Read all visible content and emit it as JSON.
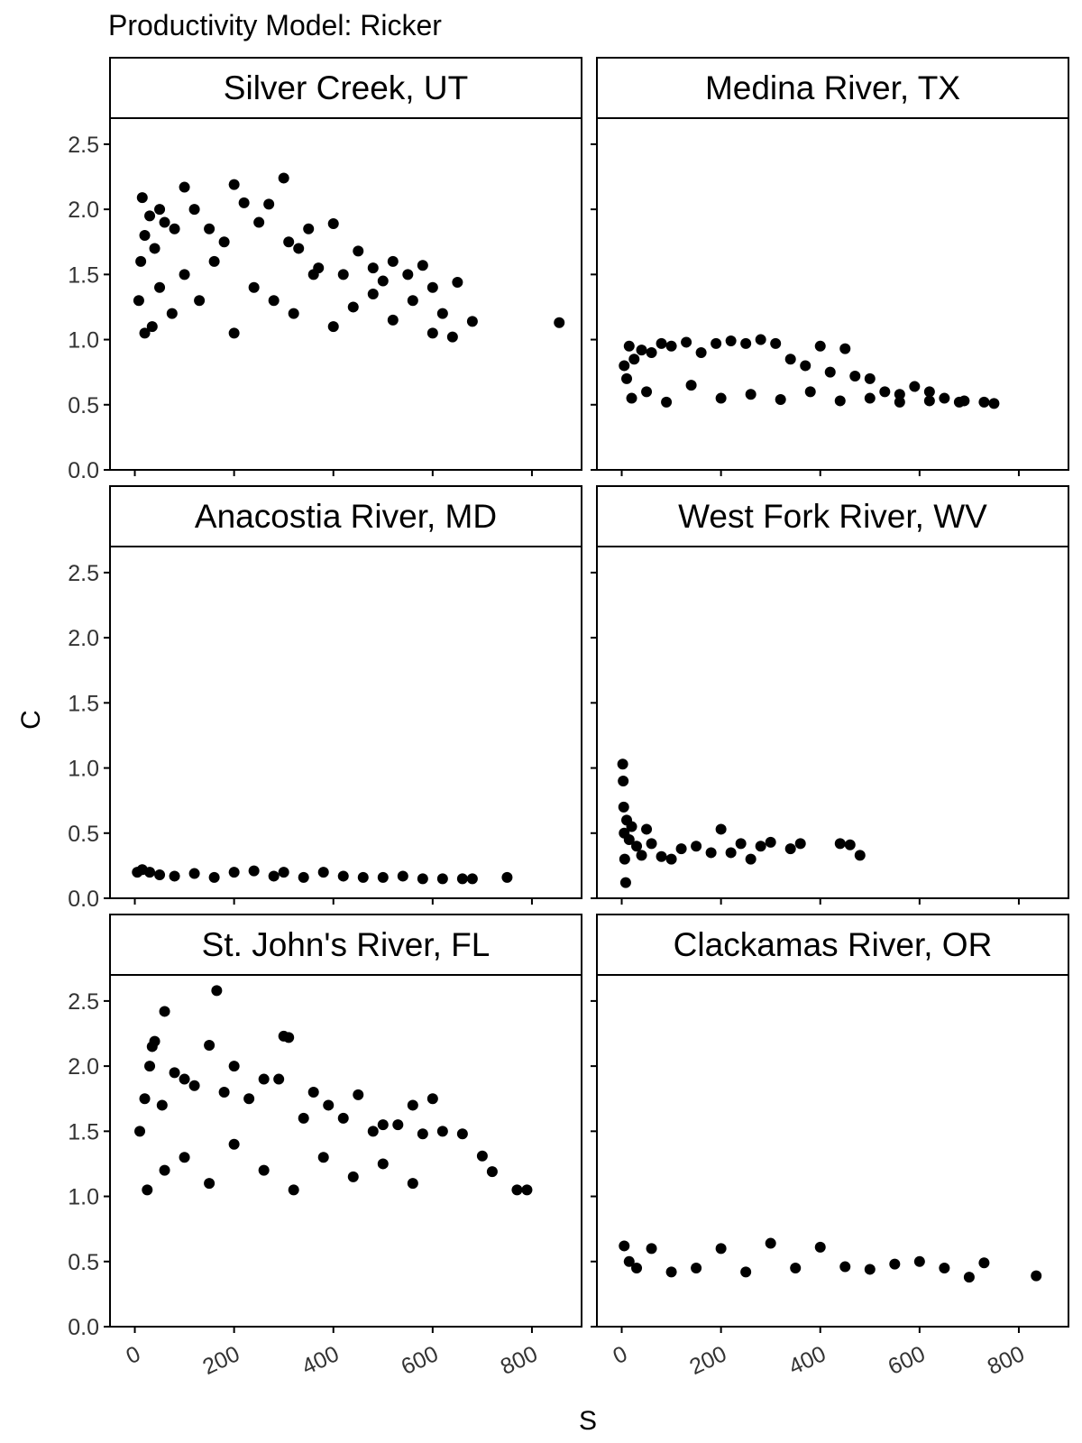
{
  "chart_data": {
    "type": "scatter",
    "title": "Productivity Model: Ricker",
    "xlabel": "S",
    "ylabel": "C",
    "xlim": [
      -50,
      900
    ],
    "ylim": [
      0,
      2.7
    ],
    "x_ticks": [
      0,
      200,
      400,
      600,
      800
    ],
    "x_tick_labels": [
      "0",
      "200",
      "400",
      "600",
      "800"
    ],
    "y_ticks": [
      0.0,
      0.5,
      1.0,
      1.5,
      2.0,
      2.5
    ],
    "y_tick_labels": [
      "0.0",
      "0.5",
      "1.0",
      "1.5",
      "2.0",
      "2.5"
    ],
    "facet_layout": "3 rows x 2 columns, shared axes",
    "point_color": "#000000",
    "panels": [
      {
        "strip": "Silver Creek, UT",
        "x": [
          8,
          12,
          15,
          20,
          30,
          40,
          50,
          60,
          80,
          100,
          120,
          150,
          180,
          200,
          220,
          250,
          270,
          300,
          310,
          330,
          350,
          370,
          400,
          420,
          450,
          480,
          500,
          520,
          550,
          580,
          600,
          620,
          650,
          680,
          855,
          20,
          35,
          50,
          75,
          100,
          130,
          160,
          200,
          240,
          280,
          320,
          360,
          400,
          440,
          480,
          520,
          560,
          600,
          640
        ],
        "y": [
          1.3,
          1.6,
          2.09,
          1.8,
          1.95,
          1.7,
          2.0,
          1.9,
          1.85,
          2.17,
          2.0,
          1.85,
          1.75,
          2.19,
          2.05,
          1.9,
          2.04,
          2.24,
          1.75,
          1.7,
          1.85,
          1.55,
          1.89,
          1.5,
          1.68,
          1.55,
          1.45,
          1.6,
          1.5,
          1.57,
          1.4,
          1.2,
          1.44,
          1.14,
          1.13,
          1.05,
          1.1,
          1.4,
          1.2,
          1.5,
          1.3,
          1.6,
          1.05,
          1.4,
          1.3,
          1.2,
          1.5,
          1.1,
          1.25,
          1.35,
          1.15,
          1.3,
          1.05,
          1.02
        ]
      },
      {
        "strip": "Medina River, TX",
        "x": [
          5,
          10,
          15,
          25,
          40,
          60,
          80,
          100,
          130,
          160,
          190,
          220,
          250,
          280,
          310,
          340,
          370,
          400,
          420,
          450,
          470,
          500,
          530,
          560,
          590,
          620,
          650,
          690,
          730,
          750,
          20,
          50,
          90,
          140,
          200,
          260,
          320,
          380,
          440,
          500,
          560,
          620,
          680
        ],
        "y": [
          0.8,
          0.7,
          0.95,
          0.85,
          0.92,
          0.9,
          0.97,
          0.95,
          0.98,
          0.9,
          0.97,
          0.99,
          0.97,
          1.0,
          0.97,
          0.85,
          0.8,
          0.95,
          0.75,
          0.93,
          0.72,
          0.7,
          0.6,
          0.58,
          0.64,
          0.6,
          0.55,
          0.53,
          0.52,
          0.51,
          0.55,
          0.6,
          0.52,
          0.65,
          0.55,
          0.58,
          0.54,
          0.6,
          0.53,
          0.55,
          0.52,
          0.53,
          0.52
        ]
      },
      {
        "strip": "Anacostia River, MD",
        "x": [
          5,
          15,
          30,
          50,
          80,
          120,
          160,
          200,
          240,
          280,
          300,
          340,
          380,
          420,
          460,
          500,
          540,
          580,
          620,
          660,
          680,
          750
        ],
        "y": [
          0.2,
          0.22,
          0.2,
          0.18,
          0.17,
          0.19,
          0.16,
          0.2,
          0.21,
          0.17,
          0.2,
          0.16,
          0.2,
          0.17,
          0.16,
          0.16,
          0.17,
          0.15,
          0.15,
          0.15,
          0.15,
          0.16
        ]
      },
      {
        "strip": "West Fork River, WV",
        "x": [
          2,
          3,
          4,
          5,
          6,
          8,
          10,
          15,
          20,
          30,
          40,
          50,
          60,
          80,
          100,
          120,
          150,
          180,
          200,
          220,
          240,
          260,
          280,
          300,
          340,
          360,
          440,
          460,
          480
        ],
        "y": [
          1.03,
          0.9,
          0.7,
          0.5,
          0.3,
          0.12,
          0.6,
          0.45,
          0.55,
          0.4,
          0.33,
          0.53,
          0.42,
          0.32,
          0.3,
          0.38,
          0.4,
          0.35,
          0.53,
          0.35,
          0.42,
          0.3,
          0.4,
          0.43,
          0.38,
          0.42,
          0.42,
          0.41,
          0.33
        ]
      },
      {
        "strip": "St. John's River, FL",
        "x": [
          10,
          20,
          30,
          35,
          40,
          55,
          60,
          80,
          100,
          120,
          150,
          165,
          180,
          200,
          230,
          260,
          290,
          300,
          310,
          340,
          360,
          390,
          420,
          450,
          480,
          500,
          530,
          560,
          580,
          600,
          620,
          660,
          700,
          720,
          770,
          790,
          25,
          60,
          100,
          150,
          200,
          260,
          320,
          380,
          440,
          500,
          560
        ],
        "y": [
          1.5,
          1.75,
          2.0,
          2.15,
          2.19,
          1.7,
          2.42,
          1.95,
          1.9,
          1.85,
          2.16,
          2.58,
          1.8,
          2.0,
          1.75,
          1.9,
          1.9,
          2.23,
          2.22,
          1.6,
          1.8,
          1.7,
          1.6,
          1.78,
          1.5,
          1.55,
          1.55,
          1.7,
          1.48,
          1.75,
          1.5,
          1.48,
          1.31,
          1.19,
          1.05,
          1.05,
          1.05,
          1.2,
          1.3,
          1.1,
          1.4,
          1.2,
          1.05,
          1.3,
          1.15,
          1.25,
          1.1
        ]
      },
      {
        "strip": "Clackamas River, OR",
        "x": [
          5,
          15,
          30,
          60,
          100,
          150,
          200,
          250,
          300,
          350,
          400,
          450,
          500,
          550,
          600,
          650,
          700,
          730,
          835
        ],
        "y": [
          0.62,
          0.5,
          0.45,
          0.6,
          0.42,
          0.45,
          0.6,
          0.42,
          0.64,
          0.45,
          0.61,
          0.46,
          0.44,
          0.48,
          0.5,
          0.45,
          0.38,
          0.49,
          0.39
        ]
      }
    ]
  }
}
